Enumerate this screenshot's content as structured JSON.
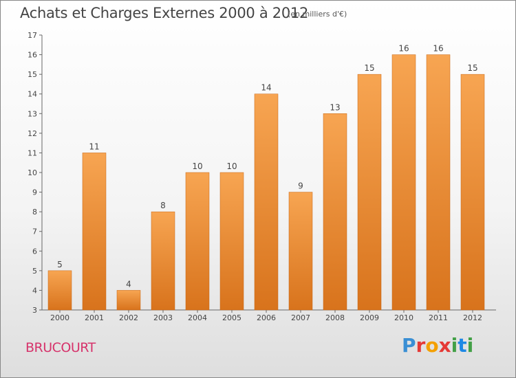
{
  "header": {
    "title": "Achats et Charges Externes 2000 à 2012",
    "subtitle": "(en milliers d'€)"
  },
  "footer": {
    "commune": "BRUCOURT",
    "logo": [
      "P",
      "r",
      "o",
      "x",
      "i",
      "t",
      "i"
    ]
  },
  "colors": {
    "bar_top": "#f7a552",
    "bar_bottom": "#d8731c",
    "bar_edge": "#c66412",
    "commune": "#d6336b"
  },
  "chart_data": {
    "type": "bar",
    "title": "Achats et Charges Externes 2000 à 2012",
    "subtitle": "(en milliers d'€)",
    "categories": [
      "2000",
      "2001",
      "2002",
      "2003",
      "2004",
      "2005",
      "2006",
      "2007",
      "2008",
      "2009",
      "2010",
      "2011",
      "2012"
    ],
    "values": [
      5,
      11,
      4,
      8,
      10,
      10,
      14,
      9,
      13,
      15,
      16,
      16,
      15
    ],
    "data_labels": [
      "5",
      "11",
      "4",
      "8",
      "10",
      "10",
      "14",
      "9",
      "13",
      "15",
      "16",
      "16",
      "15"
    ],
    "yticks": [
      "3",
      "4",
      "5",
      "6",
      "7",
      "8",
      "9",
      "10",
      "11",
      "12",
      "13",
      "14",
      "15",
      "16",
      "17"
    ],
    "ylim": [
      3,
      17
    ],
    "xlabel": "",
    "ylabel": "",
    "grid": false,
    "legend": "none"
  }
}
